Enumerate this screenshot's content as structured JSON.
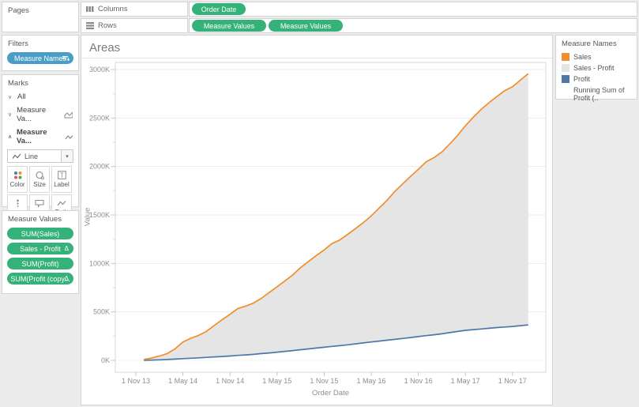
{
  "window": {
    "background": "#ececec"
  },
  "shelves": {
    "columns": {
      "label": "Columns",
      "pills": [
        {
          "label": "Order Date"
        }
      ]
    },
    "rows": {
      "label": "Rows",
      "pills": [
        {
          "label": "Measure Values"
        },
        {
          "label": "Measure Values"
        }
      ]
    }
  },
  "sidebar": {
    "pages": {
      "title": "Pages"
    },
    "filters": {
      "title": "Filters",
      "pill": {
        "label": "Measure Names"
      }
    },
    "marks": {
      "title": "Marks",
      "layers": [
        {
          "label": "All",
          "chevron": "collapsed",
          "icon": "",
          "bold": false
        },
        {
          "label": "Measure Va...",
          "chevron": "collapsed",
          "icon": "area-chart",
          "bold": false
        },
        {
          "label": "Measure Va...",
          "chevron": "expanded",
          "icon": "line-chart",
          "bold": true
        }
      ],
      "mark_type_dropdown": {
        "selected": "Line"
      },
      "buttons": [
        {
          "label": "Color"
        },
        {
          "label": "Size"
        },
        {
          "label": "Label"
        },
        {
          "label": "Detail"
        },
        {
          "label": "Tooltip"
        },
        {
          "label": "Path"
        }
      ],
      "color_encoding_pill": {
        "label": "Measure Na.."
      }
    },
    "measure_values": {
      "title": "Measure Values",
      "pills": [
        {
          "label": "SUM(Sales)",
          "table_calc": false
        },
        {
          "label": "Sales - Profit",
          "table_calc": true
        },
        {
          "label": "SUM(Profit)",
          "table_calc": false
        },
        {
          "label": "SUM(Profit (copy...",
          "table_calc": true
        }
      ]
    }
  },
  "legend": {
    "title": "Measure Names",
    "items": [
      {
        "label": "Sales",
        "color": "#f28e2b"
      },
      {
        "label": "Sales - Profit",
        "color": "#e4e4e4"
      },
      {
        "label": "Profit",
        "color": "#4e79a7"
      },
      {
        "label": "Running Sum of Profit (..",
        "color": ""
      }
    ]
  },
  "chart_data": {
    "type": "area",
    "title": "Areas",
    "xlabel": "Order Date",
    "ylabel": "Value",
    "legend_position": "right",
    "grid": true,
    "x_tick_labels": [
      "1 Nov 13",
      "1 May 14",
      "1 Nov 14",
      "1 May 15",
      "1 Nov 15",
      "1 May 16",
      "1 Nov 16",
      "1 May 17",
      "1 Nov 17"
    ],
    "y_tick_values": [
      0,
      500,
      1000,
      1500,
      2000,
      2500,
      3000
    ],
    "y_tick_labels": [
      "0K",
      "500K",
      "1000K",
      "1500K",
      "2000K",
      "2500K",
      "3000K"
    ],
    "y_minor_tick_step": 250,
    "ylim": [
      0,
      3100
    ],
    "unit": "K (thousands)",
    "x_months_since_first_tick": [
      1,
      2,
      3,
      4,
      5,
      6,
      7,
      8,
      9,
      10,
      11,
      12,
      13,
      14,
      15,
      16,
      17,
      18,
      19,
      20,
      21,
      22,
      23,
      24,
      25,
      26,
      27,
      28,
      29,
      30,
      31,
      32,
      33,
      34,
      35,
      36,
      37,
      38,
      39,
      40,
      41,
      42,
      43,
      44,
      45,
      46,
      47,
      48,
      49,
      50
    ],
    "series": [
      {
        "name": "Sales (running sum)",
        "color": "#f28e2b",
        "values": [
          8,
          25,
          45,
          70,
          120,
          190,
          228,
          258,
          300,
          360,
          420,
          475,
          535,
          560,
          592,
          640,
          700,
          760,
          820,
          882,
          958,
          1020,
          1082,
          1140,
          1205,
          1242,
          1300,
          1360,
          1422,
          1490,
          1570,
          1650,
          1742,
          1820,
          1898,
          1970,
          2048,
          2092,
          2150,
          2232,
          2320,
          2420,
          2508,
          2588,
          2658,
          2720,
          2782,
          2822,
          2890,
          2958
        ]
      },
      {
        "name": "Profit (running sum)",
        "color": "#4e79a7",
        "values": [
          1,
          3,
          6,
          9,
          13,
          18,
          22,
          26,
          31,
          36,
          40,
          45,
          51,
          56,
          62,
          70,
          77,
          85,
          93,
          101,
          110,
          118,
          127,
          135,
          144,
          152,
          161,
          170,
          180,
          190,
          199,
          208,
          217,
          226,
          236,
          245,
          255,
          264,
          274,
          286,
          298,
          310,
          317,
          324,
          331,
          338,
          344,
          350,
          358,
          366
        ]
      }
    ],
    "band": {
      "name": "Sales - Profit",
      "color": "#e5e5e5",
      "between": [
        0,
        1
      ]
    }
  }
}
